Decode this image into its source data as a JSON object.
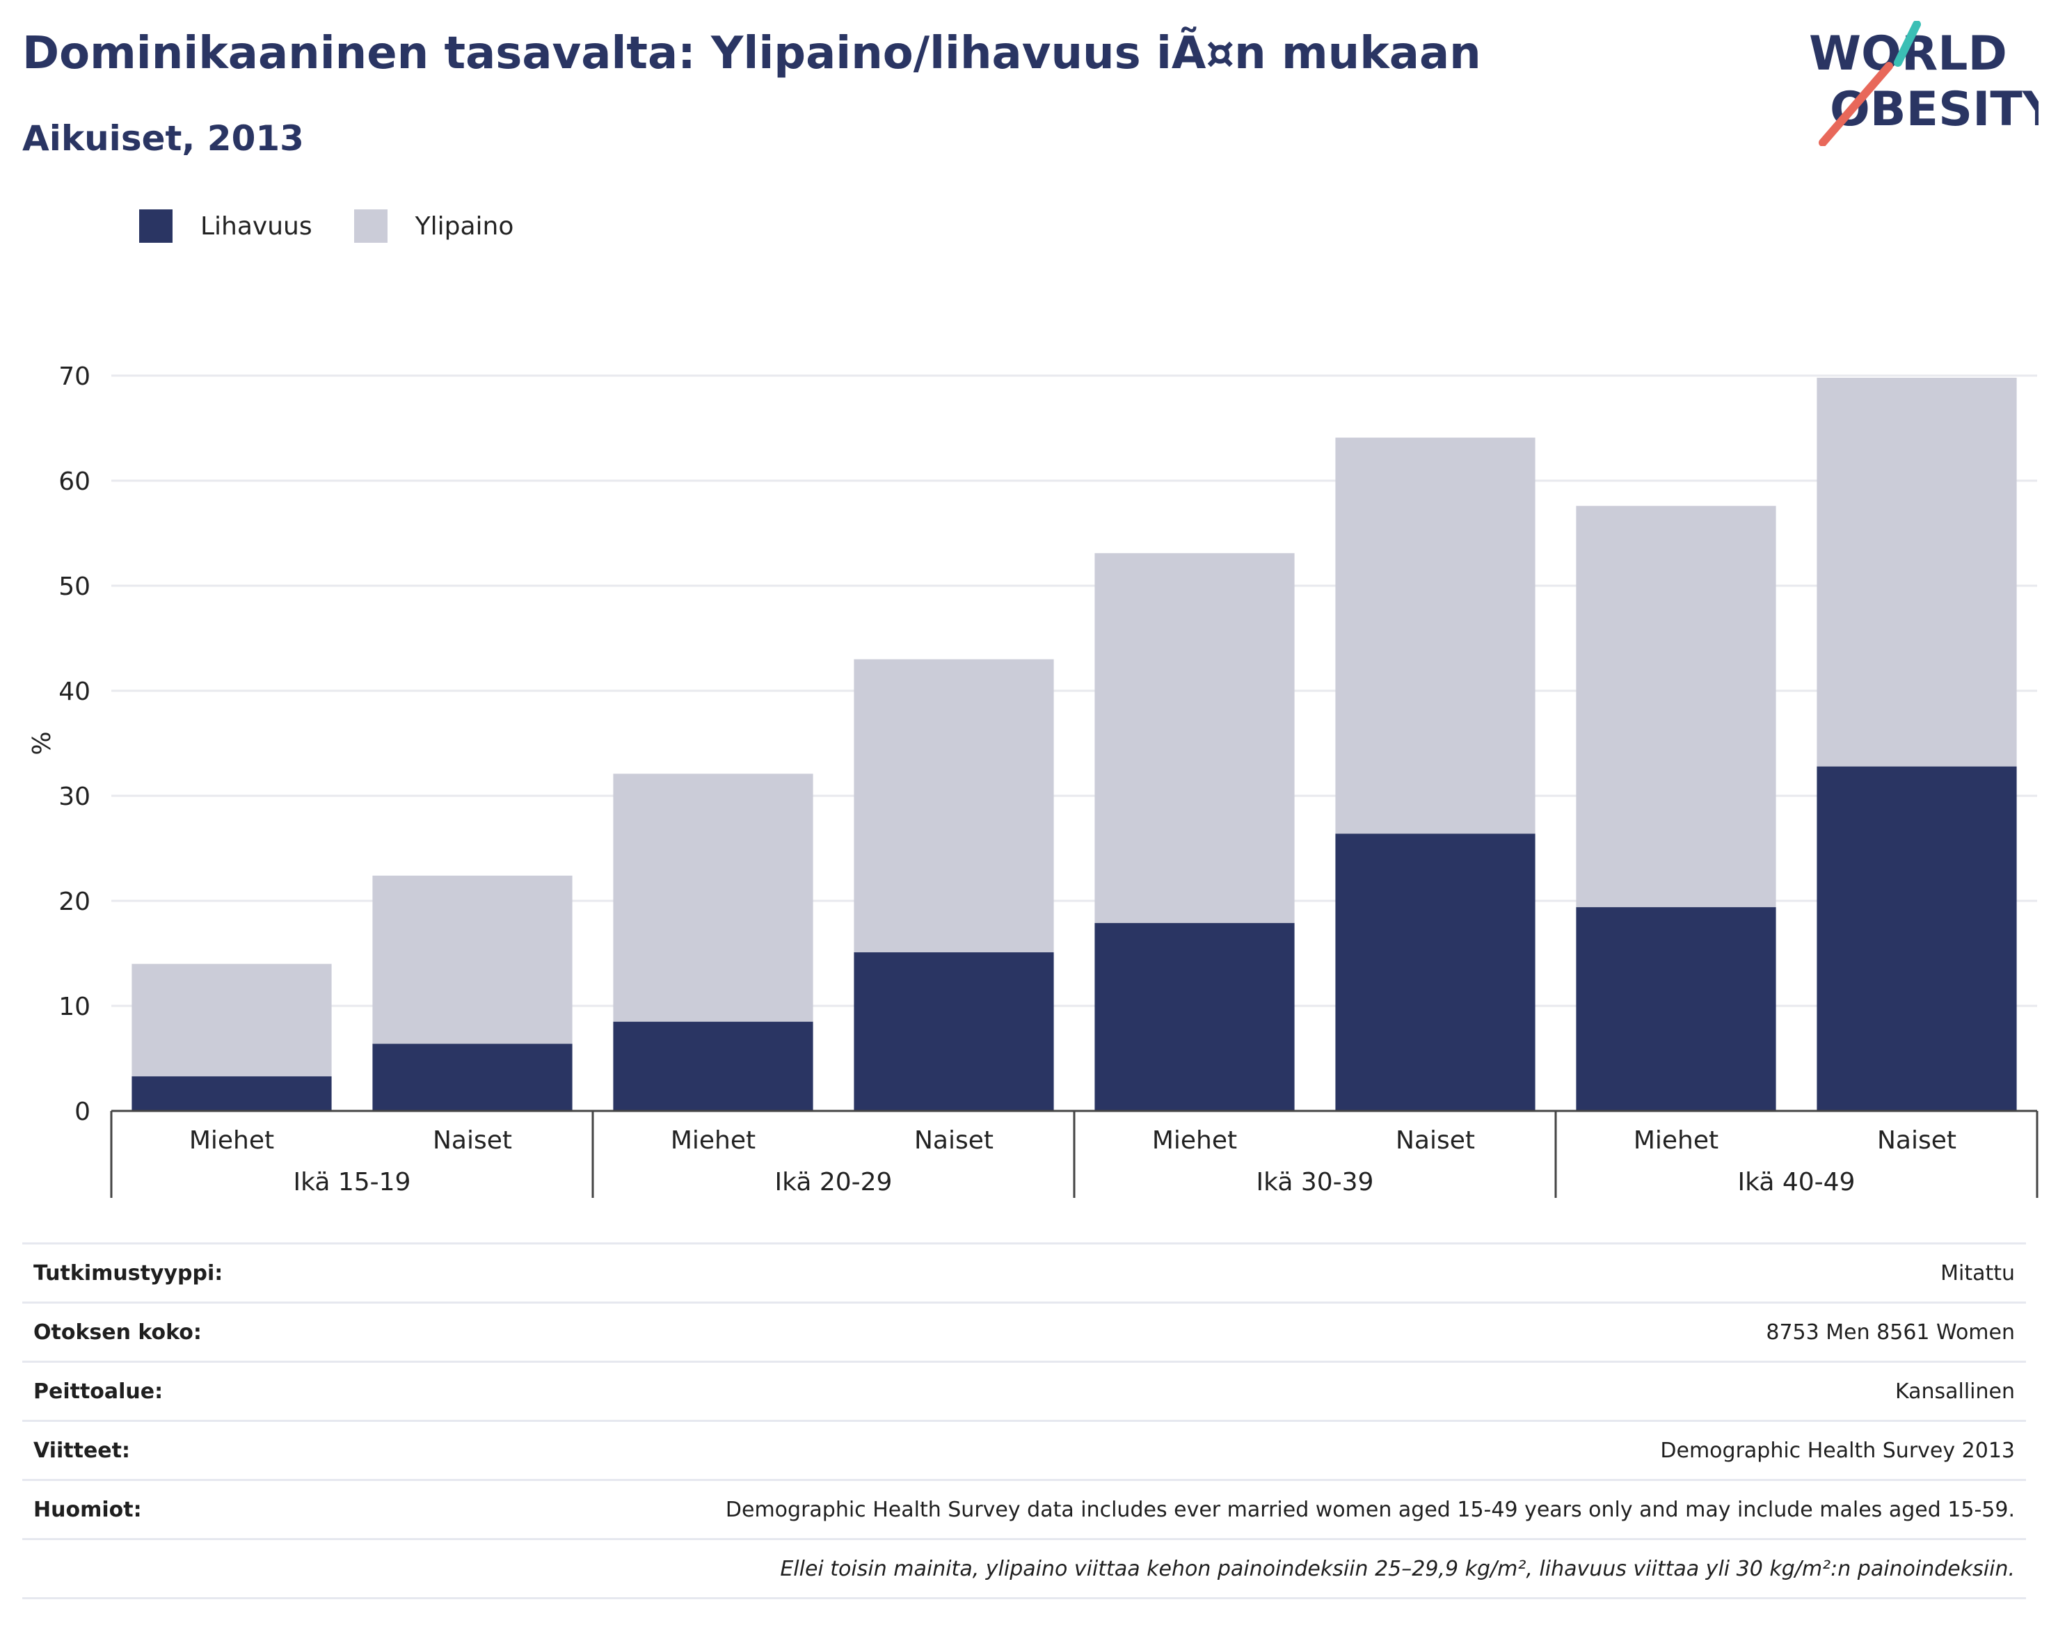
{
  "header": {
    "title": "Dominikaaninen tasavalta: Ylipaino/lihavuus iÃ¤n mukaan",
    "subtitle": "Aikuiset, 2013"
  },
  "logo": {
    "line1": "WORLD",
    "line2": "OBESITY",
    "text_color": "#2a3563",
    "accent_teal": "#3bbfb5",
    "accent_red": "#e8685a"
  },
  "legend": [
    {
      "label": "Lihavuus",
      "color": "#2a3563"
    },
    {
      "label": "Ylipaino",
      "color": "#cbccd8"
    }
  ],
  "chart_data": {
    "type": "bar",
    "stacked": true,
    "ylabel": "%",
    "ylim": [
      0,
      70
    ],
    "yticks": [
      0,
      10,
      20,
      30,
      40,
      50,
      60,
      70
    ],
    "grid": true,
    "categories": [
      "Miehet",
      "Naiset",
      "Miehet",
      "Naiset",
      "Miehet",
      "Naiset",
      "Miehet",
      "Naiset"
    ],
    "groups": [
      "Ikä 15-19",
      "Ikä 20-29",
      "Ikä 30-39",
      "Ikä 40-49"
    ],
    "series": [
      {
        "name": "Lihavuus",
        "color": "#2a3563",
        "values": [
          3.3,
          6.4,
          8.5,
          15.1,
          17.9,
          26.4,
          19.4,
          32.8
        ]
      },
      {
        "name": "Ylipaino",
        "color": "#cbccd8",
        "values": [
          10.7,
          16.0,
          23.6,
          27.9,
          35.2,
          37.7,
          38.2,
          37.0
        ]
      }
    ]
  },
  "info": [
    {
      "label": "Tutkimustyyppi:",
      "value": "Mitattu"
    },
    {
      "label": "Otoksen koko:",
      "value": "8753 Men 8561 Women"
    },
    {
      "label": "Peittoalue:",
      "value": "Kansallinen"
    },
    {
      "label": "Viitteet:",
      "value": "Demographic Health Survey 2013"
    },
    {
      "label": "Huomiot:",
      "value": "Demographic Health Survey data includes ever married women aged 15-49 years only and may include males aged 15-59."
    },
    {
      "label": "",
      "value": "Ellei toisin mainita, ylipaino viittaa kehon painoindeksiin 25–29,9 kg/m², lihavuus viittaa yli 30 kg/m²:n painoindeksiin."
    }
  ]
}
